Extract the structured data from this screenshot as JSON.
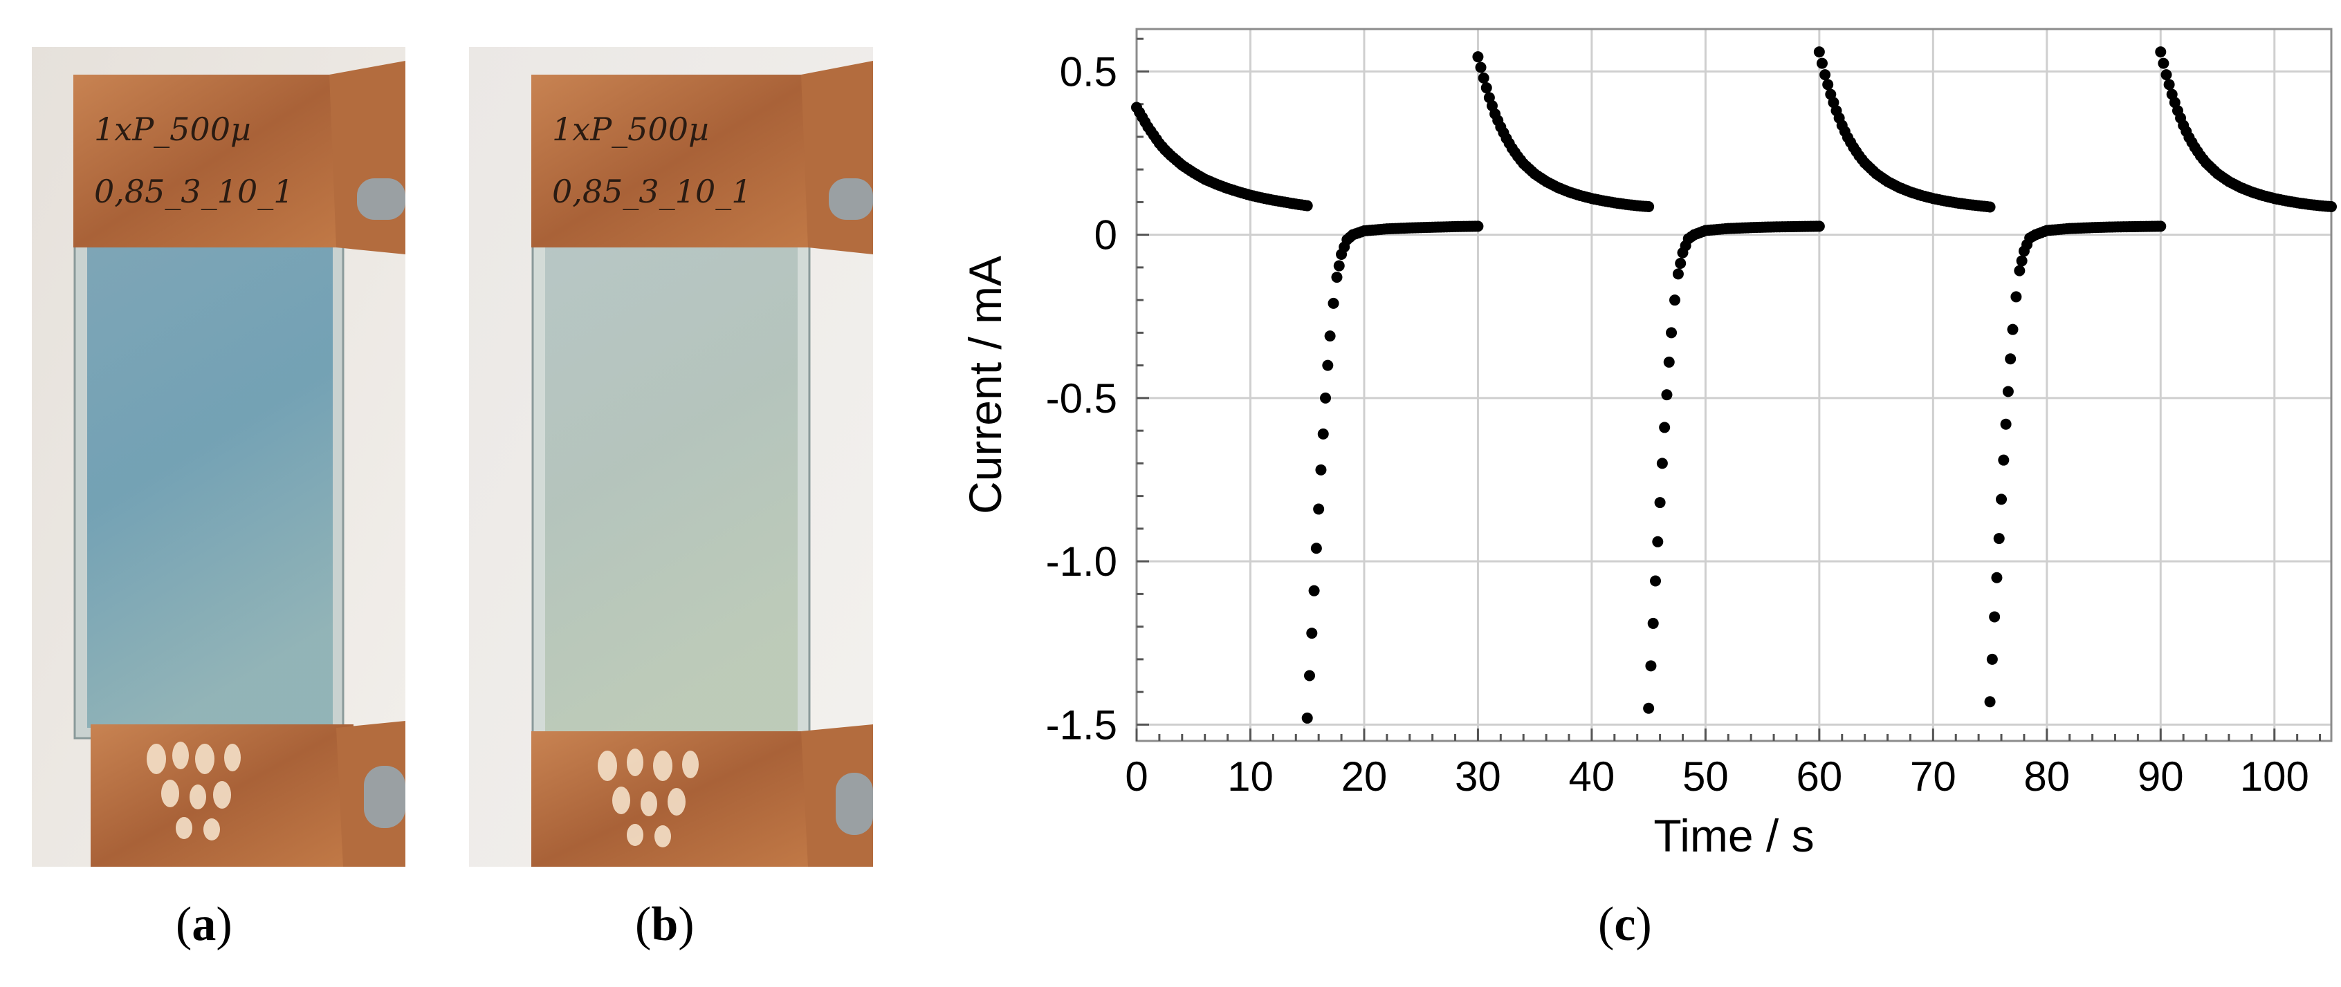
{
  "figure": {
    "panels": [
      {
        "id": "a",
        "caption_prefix": "(",
        "caption_letter": "a",
        "caption_suffix": ")",
        "photo_label_line1": "1xP_500µ",
        "photo_label_line2": "0,85_3_10_1"
      },
      {
        "id": "b",
        "caption_prefix": "(",
        "caption_letter": "b",
        "caption_suffix": ")",
        "photo_label_line1": "1xP_500µ",
        "photo_label_line2": "0,85_3_10_1"
      },
      {
        "id": "c",
        "caption_prefix": "(",
        "caption_letter": "c",
        "caption_suffix": ")"
      }
    ],
    "colors": {
      "copper": "#b8703f",
      "glass_colored": "#7fa6b4",
      "glass_bleached": "#b7c4bd",
      "background_photo": "#ede9e4",
      "data": "#000000",
      "grid": "#cfcfcf"
    }
  },
  "chart_data": {
    "type": "scatter",
    "title": "",
    "xlabel": "Time / s",
    "ylabel": "Current / mA",
    "xlim": [
      0,
      105
    ],
    "ylim": [
      -1.55,
      0.63
    ],
    "xticks": [
      0,
      10,
      20,
      30,
      40,
      50,
      60,
      70,
      80,
      90,
      100
    ],
    "yticks": [
      0.5,
      0,
      -0.5,
      -1.0,
      -1.5
    ],
    "ytick_labels": [
      "0.5",
      "0",
      "-0.5",
      "-1.0",
      "-1.5"
    ],
    "grid": true,
    "legend": "none",
    "series": [
      {
        "description_free": true,
        "points": [
          [
            0.0,
            0.39
          ],
          [
            0.5,
            0.36
          ],
          [
            1.0,
            0.33
          ],
          [
            1.5,
            0.305
          ],
          [
            2.0,
            0.28
          ],
          [
            2.5,
            0.26
          ],
          [
            3.0,
            0.243
          ],
          [
            3.5,
            0.228
          ],
          [
            4.0,
            0.213
          ],
          [
            5.0,
            0.19
          ],
          [
            6.0,
            0.17
          ],
          [
            7.0,
            0.155
          ],
          [
            8.0,
            0.142
          ],
          [
            9.0,
            0.131
          ],
          [
            10.0,
            0.121
          ],
          [
            11.0,
            0.113
          ],
          [
            12.0,
            0.106
          ],
          [
            13.0,
            0.1
          ],
          [
            14.0,
            0.094
          ],
          [
            15.0,
            0.089
          ],
          [
            15.0,
            -1.48
          ],
          [
            15.2,
            -1.35
          ],
          [
            15.4,
            -1.22
          ],
          [
            15.6,
            -1.09
          ],
          [
            15.8,
            -0.96
          ],
          [
            16.0,
            -0.84
          ],
          [
            16.2,
            -0.72
          ],
          [
            16.4,
            -0.61
          ],
          [
            16.6,
            -0.5
          ],
          [
            16.8,
            -0.4
          ],
          [
            17.0,
            -0.31
          ],
          [
            17.3,
            -0.21
          ],
          [
            17.6,
            -0.13
          ],
          [
            18.0,
            -0.06
          ],
          [
            18.5,
            -0.015
          ],
          [
            19.0,
            0.0
          ],
          [
            20.0,
            0.012
          ],
          [
            22.0,
            0.018
          ],
          [
            24.0,
            0.021
          ],
          [
            26.0,
            0.023
          ],
          [
            28.0,
            0.025
          ],
          [
            30.0,
            0.026
          ],
          [
            30.0,
            0.545
          ],
          [
            30.5,
            0.48
          ],
          [
            31.0,
            0.42
          ],
          [
            31.5,
            0.37
          ],
          [
            32.0,
            0.33
          ],
          [
            32.5,
            0.295
          ],
          [
            33.0,
            0.265
          ],
          [
            33.5,
            0.24
          ],
          [
            34.0,
            0.218
          ],
          [
            35.0,
            0.186
          ],
          [
            36.0,
            0.163
          ],
          [
            37.0,
            0.145
          ],
          [
            38.0,
            0.131
          ],
          [
            39.0,
            0.12
          ],
          [
            40.0,
            0.111
          ],
          [
            41.0,
            0.104
          ],
          [
            42.0,
            0.098
          ],
          [
            43.0,
            0.093
          ],
          [
            44.0,
            0.089
          ],
          [
            45.0,
            0.086
          ],
          [
            45.0,
            -1.45
          ],
          [
            45.2,
            -1.32
          ],
          [
            45.4,
            -1.19
          ],
          [
            45.6,
            -1.06
          ],
          [
            45.8,
            -0.94
          ],
          [
            46.0,
            -0.82
          ],
          [
            46.2,
            -0.7
          ],
          [
            46.4,
            -0.59
          ],
          [
            46.6,
            -0.49
          ],
          [
            46.8,
            -0.39
          ],
          [
            47.0,
            -0.3
          ],
          [
            47.3,
            -0.2
          ],
          [
            47.6,
            -0.12
          ],
          [
            48.0,
            -0.055
          ],
          [
            48.5,
            -0.012
          ],
          [
            49.0,
            0.0
          ],
          [
            50.0,
            0.013
          ],
          [
            52.0,
            0.019
          ],
          [
            54.0,
            0.022
          ],
          [
            56.0,
            0.024
          ],
          [
            58.0,
            0.025
          ],
          [
            60.0,
            0.026
          ],
          [
            60.0,
            0.56
          ],
          [
            60.5,
            0.49
          ],
          [
            61.0,
            0.43
          ],
          [
            61.5,
            0.38
          ],
          [
            62.0,
            0.335
          ],
          [
            62.5,
            0.298
          ],
          [
            63.0,
            0.268
          ],
          [
            63.5,
            0.242
          ],
          [
            64.0,
            0.22
          ],
          [
            65.0,
            0.187
          ],
          [
            66.0,
            0.163
          ],
          [
            67.0,
            0.145
          ],
          [
            68.0,
            0.131
          ],
          [
            69.0,
            0.12
          ],
          [
            70.0,
            0.111
          ],
          [
            71.0,
            0.104
          ],
          [
            72.0,
            0.098
          ],
          [
            73.0,
            0.093
          ],
          [
            74.0,
            0.089
          ],
          [
            75.0,
            0.085
          ],
          [
            75.0,
            -1.43
          ],
          [
            75.2,
            -1.3
          ],
          [
            75.4,
            -1.17
          ],
          [
            75.6,
            -1.05
          ],
          [
            75.8,
            -0.93
          ],
          [
            76.0,
            -0.81
          ],
          [
            76.2,
            -0.69
          ],
          [
            76.4,
            -0.58
          ],
          [
            76.6,
            -0.48
          ],
          [
            76.8,
            -0.38
          ],
          [
            77.0,
            -0.29
          ],
          [
            77.3,
            -0.19
          ],
          [
            77.6,
            -0.11
          ],
          [
            78.0,
            -0.05
          ],
          [
            78.5,
            -0.01
          ],
          [
            79.0,
            0.0
          ],
          [
            80.0,
            0.013
          ],
          [
            82.0,
            0.019
          ],
          [
            84.0,
            0.022
          ],
          [
            86.0,
            0.024
          ],
          [
            88.0,
            0.025
          ],
          [
            90.0,
            0.026
          ],
          [
            90.0,
            0.56
          ],
          [
            90.5,
            0.49
          ],
          [
            91.0,
            0.43
          ],
          [
            91.5,
            0.38
          ],
          [
            92.0,
            0.335
          ],
          [
            92.5,
            0.298
          ],
          [
            93.0,
            0.268
          ],
          [
            93.5,
            0.242
          ],
          [
            94.0,
            0.22
          ],
          [
            95.0,
            0.187
          ],
          [
            96.0,
            0.163
          ],
          [
            97.0,
            0.145
          ],
          [
            98.0,
            0.131
          ],
          [
            99.0,
            0.12
          ],
          [
            100.0,
            0.111
          ],
          [
            101.0,
            0.104
          ],
          [
            102.0,
            0.098
          ],
          [
            103.0,
            0.093
          ],
          [
            104.0,
            0.089
          ],
          [
            105.0,
            0.086
          ]
        ]
      }
    ]
  }
}
